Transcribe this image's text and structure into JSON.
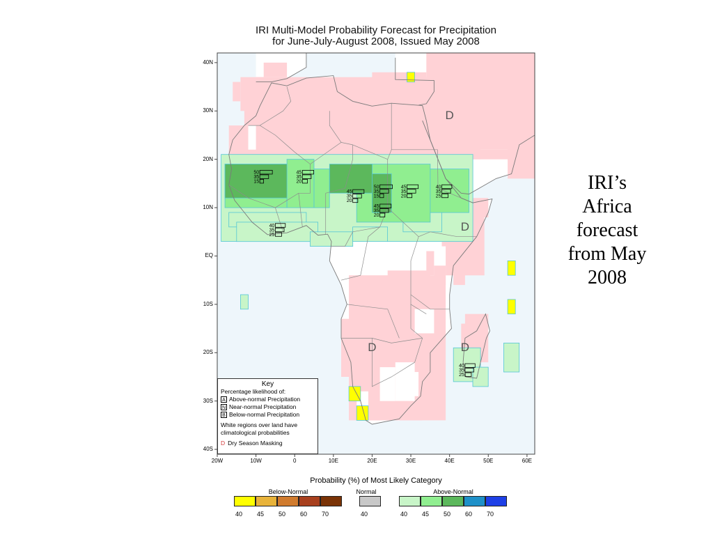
{
  "title": {
    "line1": "IRI Multi-Model Probability Forecast for Precipitation",
    "line2": "for June-July-August 2008, Issued May 2008"
  },
  "caption": [
    "IRI’s",
    "Africa",
    "forecast",
    "from May",
    "2008"
  ],
  "map": {
    "lat_ticks": [
      {
        "label": "40N",
        "lat": 40
      },
      {
        "label": "30N",
        "lat": 30
      },
      {
        "label": "20N",
        "lat": 20
      },
      {
        "label": "10N",
        "lat": 10
      },
      {
        "label": "EQ",
        "lat": 0
      },
      {
        "label": "10S",
        "lat": -10
      },
      {
        "label": "20S",
        "lat": -20
      },
      {
        "label": "30S",
        "lat": -30
      },
      {
        "label": "40S",
        "lat": -40
      }
    ],
    "lon_ticks": [
      {
        "label": "20W",
        "lon": -20
      },
      {
        "label": "10W",
        "lon": -10
      },
      {
        "label": "0",
        "lon": 0
      },
      {
        "label": "10E",
        "lon": 10
      },
      {
        "label": "20E",
        "lon": 20
      },
      {
        "label": "30E",
        "lon": 30
      },
      {
        "label": "40E",
        "lon": 40
      },
      {
        "label": "50E",
        "lon": 50
      },
      {
        "label": "60E",
        "lon": 60
      }
    ],
    "dry_season_marks": [
      {
        "label": "D",
        "lon": 40,
        "lat": 29
      },
      {
        "label": "D",
        "lon": 44,
        "lat": 6
      },
      {
        "label": "D",
        "lon": 20,
        "lat": -19
      },
      {
        "label": "D",
        "lon": 44,
        "lat": -19
      }
    ],
    "forecast_bars": [
      {
        "lon": -9,
        "lat": 16,
        "values": [
          "50",
          "35",
          "15"
        ]
      },
      {
        "lon": 2,
        "lat": 16,
        "values": [
          "45",
          "35",
          "20"
        ]
      },
      {
        "lon": 15,
        "lat": 12,
        "values": [
          "45",
          "35",
          "20"
        ]
      },
      {
        "lon": 22,
        "lat": 13,
        "values": [
          "50",
          "35",
          "15"
        ]
      },
      {
        "lon": 22,
        "lat": 9,
        "values": [
          "45",
          "35",
          "20"
        ]
      },
      {
        "lon": 29,
        "lat": 13,
        "values": [
          "45",
          "35",
          "20"
        ]
      },
      {
        "lon": 38,
        "lat": 13,
        "values": [
          "40",
          "35",
          "25"
        ]
      },
      {
        "lon": -5,
        "lat": 5,
        "values": [
          "40",
          "35",
          "25"
        ]
      },
      {
        "lon": 44,
        "lat": -24,
        "values": [
          "40",
          "35",
          "25"
        ]
      }
    ]
  },
  "key": {
    "title": "Key",
    "subtitle": "Percentage likelihood of:",
    "items": [
      {
        "letter": "A",
        "text": "Above-normal Precipitation"
      },
      {
        "letter": "N",
        "text": "Near-normal Precipitation"
      },
      {
        "letter": "B",
        "text": "Below-normal Precipitation"
      }
    ],
    "note": "White regions over land have climatological probabilities",
    "dry": {
      "letter": "D",
      "text": "Dry Season Masking"
    }
  },
  "legend": {
    "title": "Probability (%) of Most Likely Category",
    "below": {
      "label": "Below-Normal",
      "colors": [
        "#ffff00",
        "#e8b33a",
        "#d07b2e",
        "#a8401e",
        "#7a3306"
      ],
      "ticks": [
        "40",
        "45",
        "50",
        "60",
        "70"
      ]
    },
    "normal": {
      "label": "Normal",
      "colors": [
        "#c8c8c8"
      ],
      "ticks": [
        "40"
      ]
    },
    "above": {
      "label": "Above-Normal",
      "colors": [
        "#c8f5c8",
        "#90ee90",
        "#5cb85c",
        "#1e90c8",
        "#1e40e6"
      ],
      "ticks": [
        "40",
        "45",
        "50",
        "60",
        "70"
      ]
    }
  }
}
